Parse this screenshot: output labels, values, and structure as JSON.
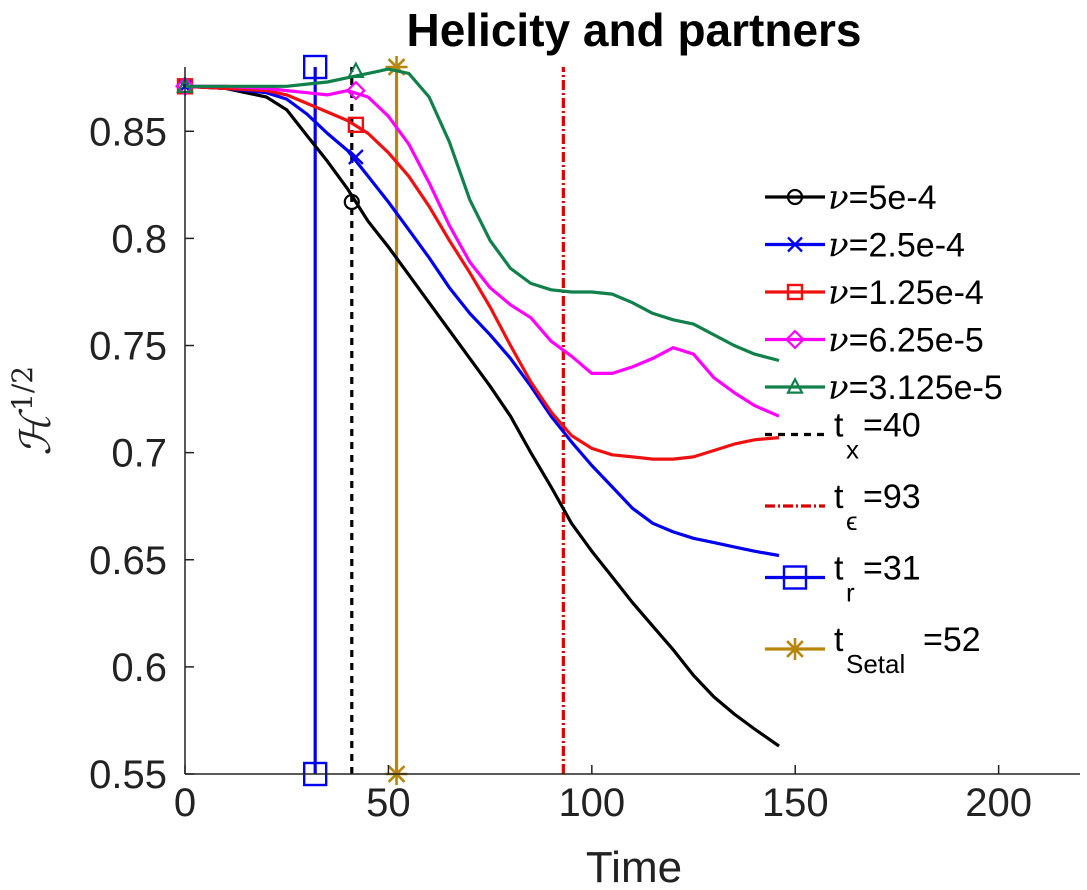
{
  "chart_data": {
    "type": "line",
    "title": "Helicity and partners",
    "xlabel": "Time",
    "ylabel": "ℋ",
    "ylabel_superscript": "1/2",
    "xlim": [
      0,
      220
    ],
    "ylim": [
      0.55,
      0.88
    ],
    "xticks": [
      0,
      50,
      100,
      150,
      200
    ],
    "xtick_labels": [
      "0",
      "50",
      "100",
      "150",
      "200"
    ],
    "yticks": [
      0.55,
      0.6,
      0.65,
      0.7,
      0.75,
      0.8,
      0.85
    ],
    "ytick_labels": [
      "0.55",
      "0.6",
      "0.65",
      "0.7",
      "0.75",
      "0.8",
      "0.85"
    ],
    "grid": false,
    "legend_position": "right",
    "series": [
      {
        "name": "ν=5e-4",
        "nu_symbol": "ν",
        "nu_value": "=5e-4",
        "color": "#000000",
        "marker": "circle",
        "marker_at": [
          41,
          0.817
        ],
        "x": [
          0,
          10,
          20,
          25,
          30,
          35,
          40,
          45,
          50,
          55,
          60,
          65,
          70,
          75,
          80,
          85,
          90,
          95,
          100,
          105,
          110,
          115,
          120,
          125,
          130,
          135,
          140,
          146
        ],
        "y": [
          0.871,
          0.87,
          0.866,
          0.86,
          0.848,
          0.836,
          0.823,
          0.808,
          0.796,
          0.783,
          0.77,
          0.757,
          0.744,
          0.731,
          0.717,
          0.7,
          0.684,
          0.667,
          0.654,
          0.642,
          0.63,
          0.619,
          0.608,
          0.596,
          0.586,
          0.578,
          0.571,
          0.563
        ]
      },
      {
        "name": "ν=2.5e-4",
        "nu_symbol": "ν",
        "nu_value": "=2.5e-4",
        "color": "#0000ee",
        "marker": "x",
        "marker_at": [
          42,
          0.838
        ],
        "x": [
          0,
          10,
          20,
          25,
          30,
          35,
          40,
          45,
          50,
          55,
          60,
          65,
          70,
          75,
          80,
          85,
          90,
          95,
          100,
          105,
          110,
          115,
          120,
          125,
          130,
          135,
          140,
          146
        ],
        "y": [
          0.871,
          0.87,
          0.868,
          0.865,
          0.858,
          0.849,
          0.841,
          0.829,
          0.817,
          0.804,
          0.791,
          0.777,
          0.765,
          0.755,
          0.744,
          0.731,
          0.717,
          0.705,
          0.694,
          0.684,
          0.674,
          0.667,
          0.663,
          0.66,
          0.658,
          0.656,
          0.654,
          0.652
        ]
      },
      {
        "name": "ν=1.25e-4",
        "nu_symbol": "ν",
        "nu_value": "=1.25e-4",
        "color": "#ee1111",
        "marker": "square",
        "marker_at": [
          42,
          0.853
        ],
        "x": [
          0,
          10,
          20,
          25,
          30,
          35,
          40,
          45,
          50,
          55,
          60,
          65,
          70,
          75,
          80,
          85,
          90,
          95,
          100,
          105,
          110,
          115,
          120,
          125,
          130,
          135,
          140,
          146
        ],
        "y": [
          0.871,
          0.87,
          0.869,
          0.867,
          0.863,
          0.859,
          0.855,
          0.849,
          0.84,
          0.829,
          0.815,
          0.799,
          0.784,
          0.768,
          0.75,
          0.733,
          0.719,
          0.708,
          0.702,
          0.699,
          0.698,
          0.697,
          0.697,
          0.698,
          0.701,
          0.704,
          0.706,
          0.707
        ]
      },
      {
        "name": "ν=6.25e-5",
        "nu_symbol": "ν",
        "nu_value": "=6.25e-5",
        "color": "#ff00ff",
        "marker": "diamond",
        "marker_at": [
          42,
          0.869
        ],
        "x": [
          0,
          10,
          20,
          25,
          30,
          35,
          40,
          45,
          50,
          55,
          60,
          65,
          70,
          75,
          80,
          85,
          90,
          95,
          100,
          105,
          110,
          115,
          120,
          125,
          130,
          135,
          140,
          146
        ],
        "y": [
          0.871,
          0.871,
          0.87,
          0.869,
          0.868,
          0.867,
          0.869,
          0.866,
          0.857,
          0.844,
          0.826,
          0.806,
          0.789,
          0.777,
          0.769,
          0.763,
          0.752,
          0.745,
          0.737,
          0.737,
          0.74,
          0.744,
          0.749,
          0.746,
          0.735,
          0.728,
          0.722,
          0.717
        ]
      },
      {
        "name": "ν=3.125e-5",
        "nu_symbol": "ν",
        "nu_value": "=3.125e-5",
        "color": "#11804a",
        "marker": "triangle",
        "marker_at": [
          42,
          0.878
        ],
        "x": [
          0,
          10,
          20,
          25,
          30,
          35,
          40,
          45,
          50,
          55,
          60,
          65,
          70,
          75,
          80,
          85,
          90,
          95,
          100,
          105,
          110,
          115,
          120,
          125,
          130,
          135,
          140,
          146
        ],
        "y": [
          0.871,
          0.871,
          0.871,
          0.871,
          0.872,
          0.873,
          0.875,
          0.877,
          0.879,
          0.877,
          0.866,
          0.845,
          0.818,
          0.799,
          0.786,
          0.779,
          0.776,
          0.775,
          0.775,
          0.774,
          0.77,
          0.765,
          0.762,
          0.76,
          0.755,
          0.75,
          0.746,
          0.743
        ]
      }
    ],
    "vlines": [
      {
        "name": "t_x=40",
        "label_main": "t",
        "label_sub": "x",
        "label_value": "=40",
        "x": 41,
        "color": "#000000",
        "style": "dashed",
        "marker": "none"
      },
      {
        "name": "t_ε=93",
        "label_main": "t",
        "label_sub": "ϵ",
        "label_value": "=93",
        "x": 93,
        "color": "#dd0000",
        "style": "dashdot",
        "marker": "none"
      },
      {
        "name": "t_r=31",
        "label_main": "t",
        "label_sub": "r",
        "label_value": "=31",
        "x": 32,
        "color": "#0000ee",
        "style": "solid",
        "marker": "square"
      },
      {
        "name": "t_Setal=52",
        "label_main": "t",
        "label_sub": "Setal",
        "label_value": "=52",
        "x": 52,
        "color": "#b8860b",
        "style": "solid",
        "marker": "asterisk"
      }
    ]
  }
}
